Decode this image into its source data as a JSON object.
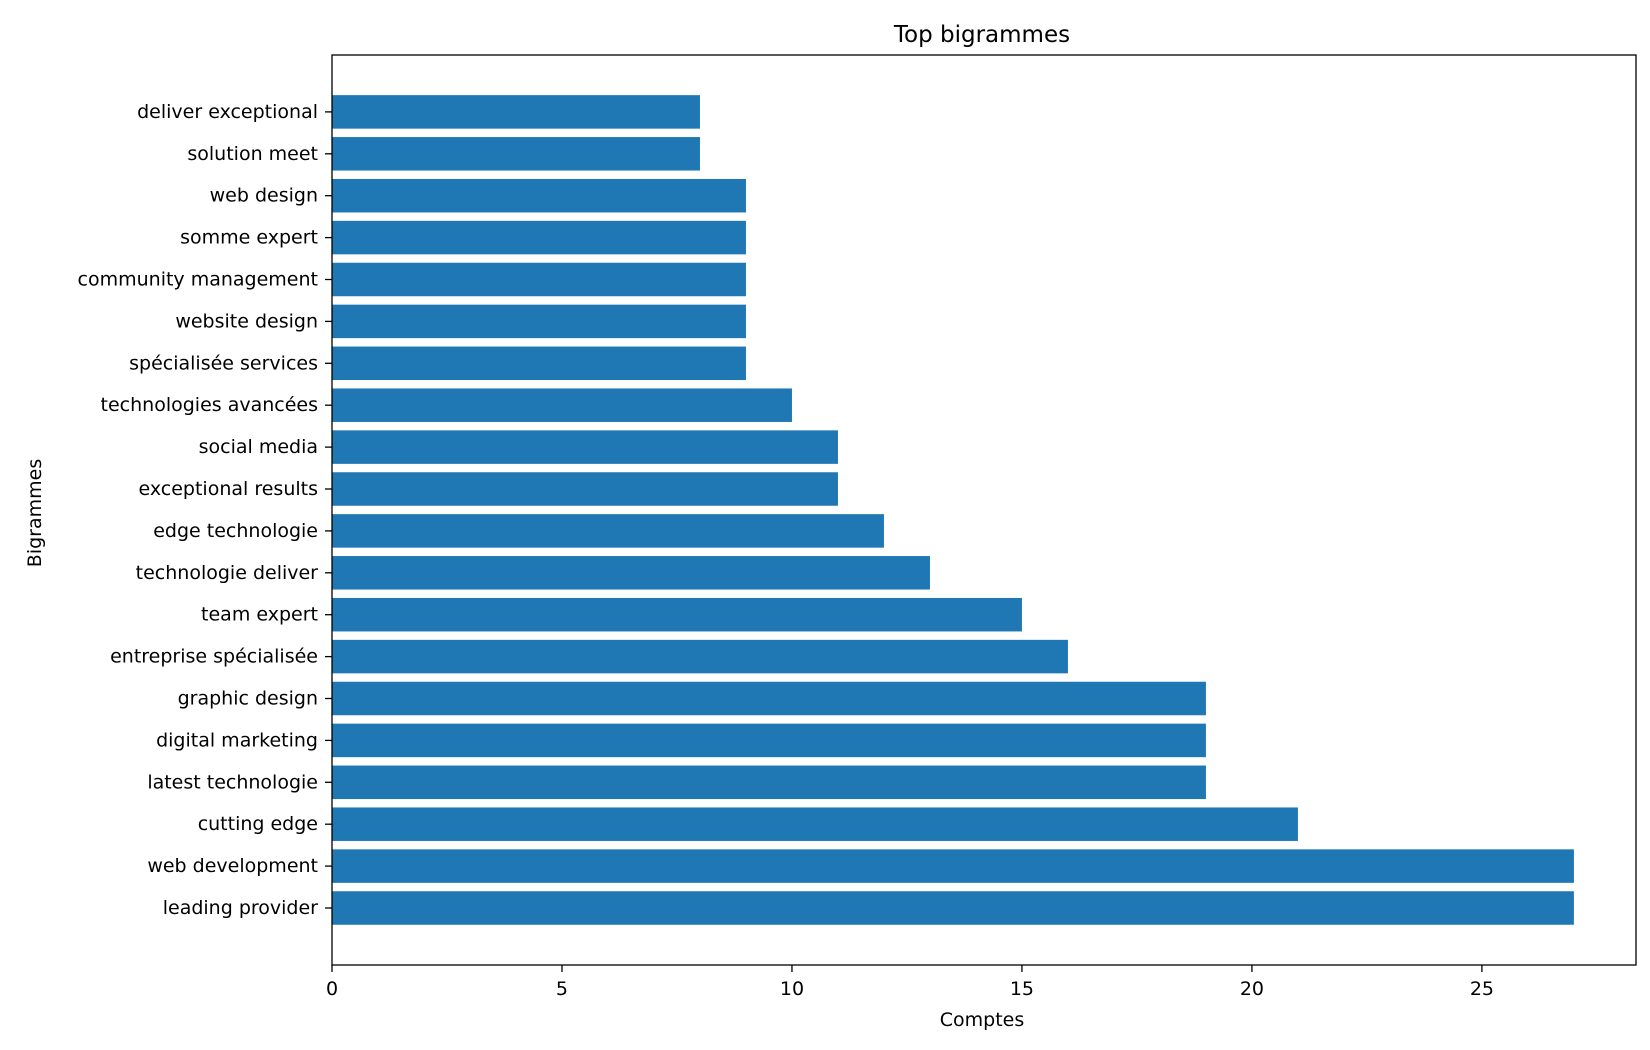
{
  "chart_data": {
    "type": "bar",
    "orientation": "horizontal",
    "title": "Top bigrammes",
    "xlabel": "Comptes",
    "ylabel": "Bigrammes",
    "xlim": [
      0,
      28.35
    ],
    "xticks": [
      0,
      5,
      10,
      15,
      20,
      25
    ],
    "grid": false,
    "bar_color": "#1f77b4",
    "categories": [
      "leading provider",
      "web development",
      "cutting edge",
      "latest technologie",
      "digital marketing",
      "graphic design",
      "entreprise spécialisée",
      "team expert",
      "technologie deliver",
      "edge technologie",
      "exceptional results",
      "social media",
      "technologies avancées",
      "spécialisée services",
      "website design",
      "community management",
      "somme expert",
      "web design",
      "solution meet",
      "deliver exceptional"
    ],
    "values": [
      27,
      27,
      21,
      19,
      19,
      19,
      16,
      15,
      13,
      12,
      11,
      11,
      10,
      9,
      9,
      9,
      9,
      9,
      8,
      8
    ]
  }
}
